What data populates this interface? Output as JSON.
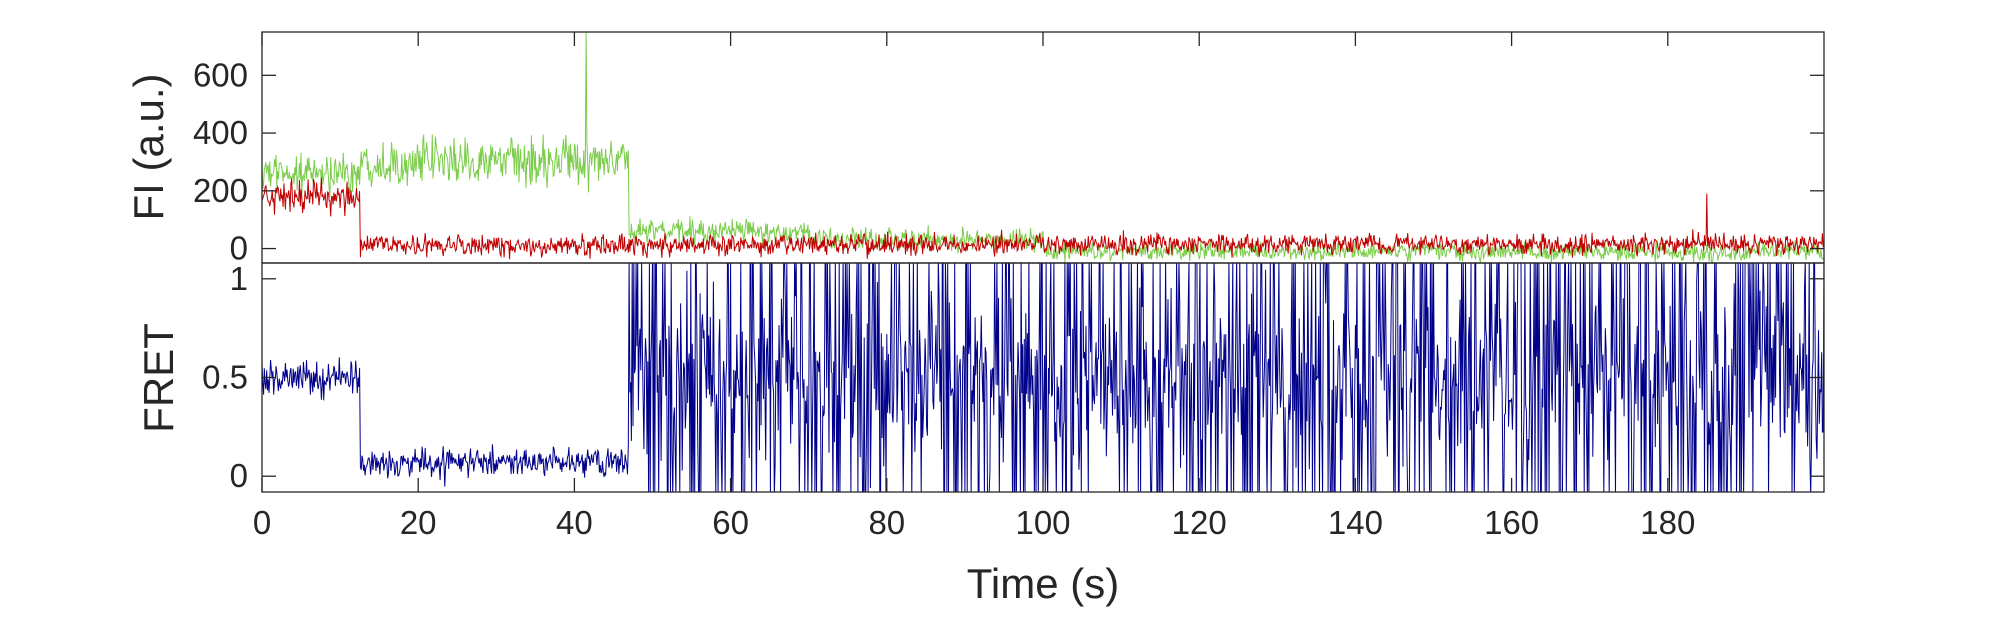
{
  "chart_data": [
    {
      "type": "line",
      "ylabel": "FI (a.u.)",
      "xlabel": "",
      "xlim": [
        0,
        200
      ],
      "ylim": [
        -50,
        750
      ],
      "yticks": [
        0,
        200,
        400,
        600
      ],
      "ytick_labels": [
        "0",
        "200",
        "400",
        "600"
      ],
      "grid": false,
      "series": [
        {
          "color": "#7ccd4c",
          "segments": [
            {
              "x_start": 0,
              "x_end": 12.5,
              "level": 260,
              "noise": 90
            },
            {
              "x_start": 12.5,
              "x_end": 47,
              "level": 300,
              "noise": 100
            },
            {
              "x_start": 47,
              "x_end": 70,
              "level": 60,
              "noise": 55
            },
            {
              "x_start": 70,
              "x_end": 100,
              "level": 30,
              "noise": 50
            },
            {
              "x_start": 100,
              "x_end": 200,
              "level": -10,
              "noise": 40
            }
          ],
          "spikes": [
            {
              "x": 41.5,
              "y": 750
            }
          ]
        },
        {
          "color": "#c00000",
          "segments": [
            {
              "x_start": 0,
              "x_end": 12.5,
              "level": 180,
              "noise": 70
            },
            {
              "x_start": 12.5,
              "x_end": 47,
              "level": 10,
              "noise": 45
            },
            {
              "x_start": 47,
              "x_end": 200,
              "level": 15,
              "noise": 45
            }
          ],
          "spikes": [
            {
              "x": 185,
              "y": 190
            }
          ]
        }
      ]
    },
    {
      "type": "line",
      "ylabel": "FRET",
      "xlabel": "Time (s)",
      "xlim": [
        0,
        200
      ],
      "ylim": [
        -0.08,
        1.08
      ],
      "xticks": [
        0,
        20,
        40,
        60,
        80,
        100,
        120,
        140,
        160,
        180
      ],
      "xtick_labels": [
        "0",
        "20",
        "40",
        "60",
        "80",
        "100",
        "120",
        "140",
        "160",
        "180"
      ],
      "yticks": [
        0,
        0.5,
        1
      ],
      "ytick_labels": [
        "0",
        "0.5",
        "1"
      ],
      "grid": false,
      "series": [
        {
          "color": "#00008b",
          "segments": [
            {
              "x_start": 0,
              "x_end": 12.5,
              "level": 0.5,
              "noise": 0.12
            },
            {
              "x_start": 12.5,
              "x_end": 47,
              "level": 0.07,
              "noise": 0.1
            },
            {
              "x_start": 47,
              "x_end": 200,
              "level": 0.5,
              "noise": 0.5
            }
          ]
        }
      ]
    }
  ]
}
